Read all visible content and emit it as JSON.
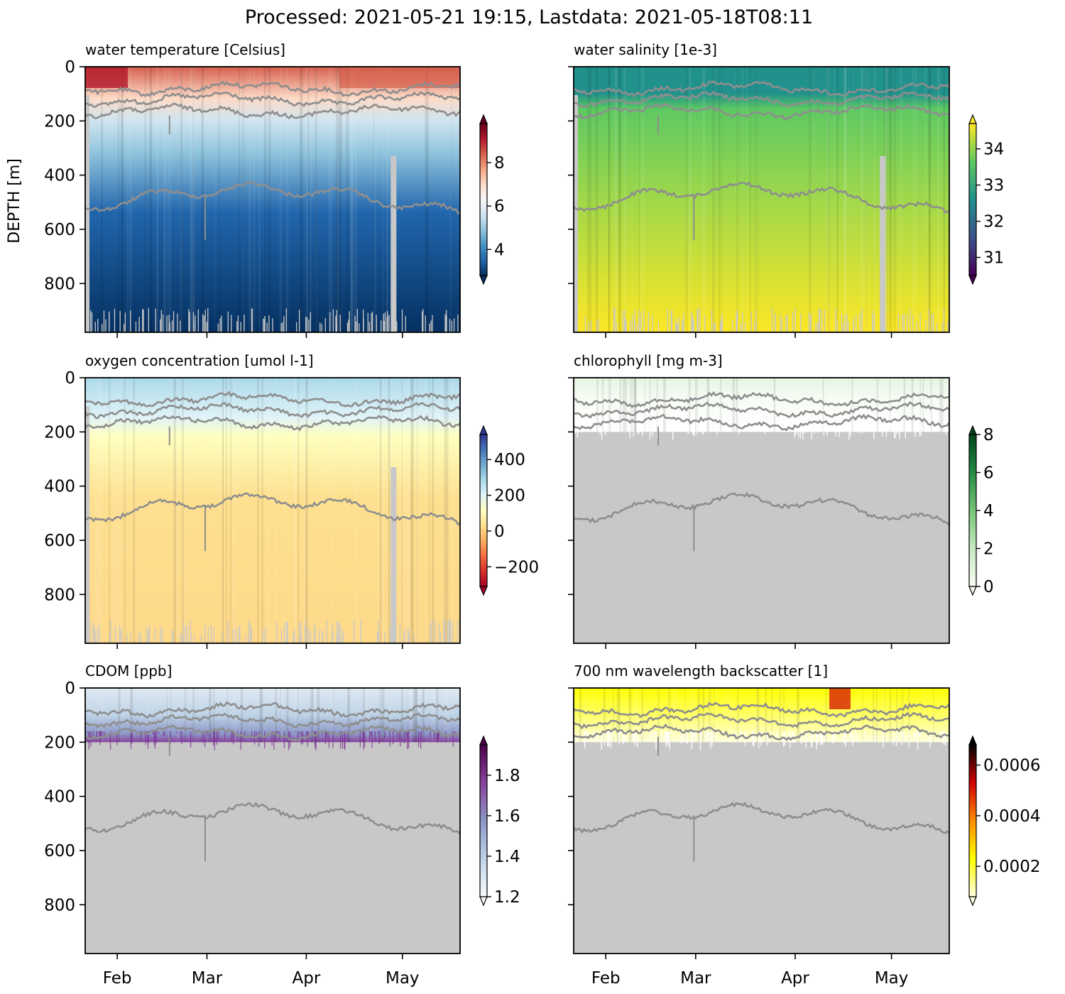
{
  "suptitle": "Processed: 2021-05-21 19:15, Lastdata: 2021-05-18T08:11",
  "shared": {
    "ylabel": "DEPTH [m]",
    "y_ticks": [
      "0",
      "200",
      "400",
      "600",
      "800"
    ],
    "y_tick_values": [
      0,
      200,
      400,
      600,
      800
    ],
    "ylim": [
      0,
      980
    ],
    "x_ticks": [
      "Feb",
      "Mar",
      "Apr",
      "May"
    ],
    "x_tick_dates": [
      "2021-02-01",
      "2021-03-01",
      "2021-04-01",
      "2021-05-01"
    ],
    "xlim": [
      "2021-01-22",
      "2021-05-19"
    ],
    "mask_color": "#c8c8c8",
    "contour_color": "#8e8e8e"
  },
  "chart_data": [
    {
      "type": "heatmap",
      "title": "water temperature [Celsius]",
      "colormap": "RdBu_r",
      "colorbar_ticks": [
        "4",
        "6",
        "8"
      ],
      "colorbar_tick_values": [
        4,
        6,
        8
      ],
      "colorbar_range": [
        2.8,
        9.8
      ],
      "colors": [
        "#053061",
        "#2166ac",
        "#4393c3",
        "#92c5de",
        "#d1e5f0",
        "#f7f7f7",
        "#fddbc7",
        "#f4a582",
        "#d6604d",
        "#b2182b",
        "#67001f"
      ],
      "data_depth_limit": 980
    },
    {
      "type": "heatmap",
      "title": "water salinity [1e-3]",
      "colormap": "viridis",
      "colorbar_ticks": [
        "31",
        "32",
        "33",
        "34"
      ],
      "colorbar_tick_values": [
        31,
        32,
        33,
        34
      ],
      "colorbar_range": [
        30.5,
        34.7
      ],
      "colors": [
        "#440154",
        "#3b528b",
        "#21918c",
        "#5ec962",
        "#fde725"
      ],
      "data_depth_limit": 980
    },
    {
      "type": "heatmap",
      "title": "oxygen concentration [umol l-1]",
      "colormap": "RdYlBu",
      "colorbar_ticks": [
        "400",
        "200",
        "0",
        "−200"
      ],
      "colorbar_tick_values": [
        400,
        200,
        0,
        -200
      ],
      "colorbar_range": [
        -310,
        540
      ],
      "colors": [
        "#a50026",
        "#d73027",
        "#f46d43",
        "#fdae61",
        "#fee090",
        "#ffffbf",
        "#e0f3f8",
        "#abd9e9",
        "#74add1",
        "#4575b4",
        "#313695"
      ],
      "data_depth_limit": 980
    },
    {
      "type": "heatmap",
      "title": "chlorophyll [mg m-3]",
      "colormap": "Greens",
      "colorbar_ticks": [
        "8",
        "6",
        "4",
        "2",
        "0"
      ],
      "colorbar_tick_values": [
        8,
        6,
        4,
        2,
        0
      ],
      "colorbar_range": [
        0,
        8
      ],
      "colors": [
        "#f7fcf5",
        "#c7e9c0",
        "#74c476",
        "#238b45",
        "#00441b"
      ],
      "data_depth_limit": 200
    },
    {
      "type": "heatmap",
      "title": "CDOM [ppb]",
      "colormap": "BuPu",
      "colorbar_ticks": [
        "1.8",
        "1.6",
        "1.4",
        "1.2"
      ],
      "colorbar_tick_values": [
        1.8,
        1.6,
        1.4,
        1.2
      ],
      "colorbar_range": [
        1.2,
        1.95
      ],
      "colors": [
        "#f7fcfd",
        "#bfd3e6",
        "#8c96c6",
        "#88419d",
        "#4d004b"
      ],
      "data_depth_limit": 200
    },
    {
      "type": "heatmap",
      "title": "700 nm wavelength backscatter [1]",
      "colormap": "hot_r",
      "colorbar_ticks": [
        "0.0006",
        "0.0004",
        "0.0002"
      ],
      "colorbar_tick_values": [
        0.0006,
        0.0004,
        0.0002
      ],
      "colorbar_range": [
        8e-05,
        0.00068
      ],
      "colors": [
        "#ffffe0",
        "#ffff00",
        "#ff8c00",
        "#d00000",
        "#000000"
      ],
      "data_depth_limit": 200
    }
  ]
}
